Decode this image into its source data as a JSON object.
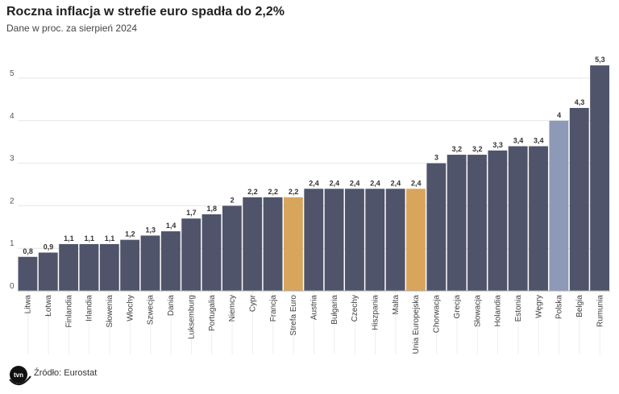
{
  "title": "Roczna inflacja w strefie euro spadła do 2,2%",
  "subtitle": "Dane w proc. za sierpień 2024",
  "source": "Źródło: Eurostat",
  "logo_text": "tvn24",
  "colors": {
    "default": "#50546a",
    "highlight": "#d8a55c",
    "poland": "#8e99b7"
  },
  "chart_data": {
    "type": "bar",
    "title": "Roczna inflacja w strefie euro spadła do 2,2%",
    "xlabel": "",
    "ylabel": "",
    "ylim": [
      0,
      5.5
    ],
    "yticks": [
      0,
      1,
      2,
      3,
      4,
      5
    ],
    "grid": true,
    "categories": [
      "Litwa",
      "Łotwa",
      "Finlandia",
      "Irlandia",
      "Słowenia",
      "Włochy",
      "Szwecja",
      "Dania",
      "Luksemburg",
      "Portugalia",
      "Niemcy",
      "Cypr",
      "Francja",
      "Strefa Euro",
      "Austria",
      "Bułgaria",
      "Czechy",
      "Hiszpania",
      "Malta",
      "Unia Europejska",
      "Chorwacja",
      "Grecja",
      "Słowacja",
      "Holandia",
      "Estonia",
      "Węgry",
      "Polska",
      "Belgia",
      "Rumunia"
    ],
    "values": [
      0.8,
      0.9,
      1.1,
      1.1,
      1.1,
      1.2,
      1.3,
      1.4,
      1.7,
      1.8,
      2,
      2.2,
      2.2,
      2.2,
      2.4,
      2.4,
      2.4,
      2.4,
      2.4,
      2.4,
      3,
      3.2,
      3.2,
      3.3,
      3.4,
      3.4,
      4,
      4.3,
      5.3
    ],
    "highlight": [
      "Strefa Euro",
      "Unia Europejska"
    ],
    "special": [
      "Polska"
    ]
  }
}
